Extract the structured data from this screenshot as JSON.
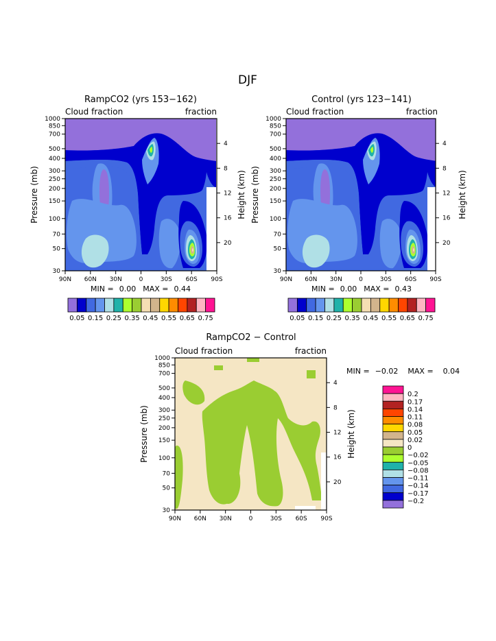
{
  "page_title": "DJF",
  "colors": {
    "cloud": [
      "#9370DB",
      "#0000CD",
      "#4169E1",
      "#6495ED",
      "#B0E0E6",
      "#20B2AA",
      "#ADFF2F",
      "#9ACD32",
      "#F5DEB3",
      "#D2B48C",
      "#FFD700",
      "#FF8C00",
      "#FF4500",
      "#B22222",
      "#FFB6C1",
      "#FF1493"
    ],
    "diff": [
      "#FF1493",
      "#FFB6C1",
      "#B22222",
      "#FF4500",
      "#FF8C00",
      "#FFD700",
      "#D2B48C",
      "#F5E6C4",
      "#9ACD32",
      "#ADFF2F",
      "#20B2AA",
      "#B0E0E6",
      "#6495ED",
      "#4169E1",
      "#0000CD",
      "#9370DB"
    ]
  },
  "chart_data": [
    {
      "id": "rampco2",
      "type": "heatmap",
      "title": "RampCO2 (yrs 153−162)",
      "left_subtitle": "Cloud fraction",
      "right_subtitle": "fraction",
      "ylabel": "Pressure (mb)",
      "ylabel_right": "Height (km)",
      "x_ticks": [
        "90N",
        "60N",
        "30N",
        "0",
        "30S",
        "60S",
        "90S"
      ],
      "y_ticks": [
        "30",
        "50",
        "70",
        "100",
        "150",
        "200",
        "250",
        "300",
        "400",
        "500",
        "700",
        "850",
        "1000"
      ],
      "y_right_ticks": [
        "20",
        "16",
        "12",
        "8",
        "4"
      ],
      "stats": {
        "min_label": "MIN =",
        "min": "0.00",
        "max_label": "MAX =",
        "max": "0.44"
      },
      "colorbar_labels": [
        "0.05",
        "0.15",
        "0.25",
        "0.35",
        "0.45",
        "0.55",
        "0.65",
        "0.75"
      ],
      "xlim": [
        90,
        -90
      ],
      "ylim": [
        1000,
        30
      ],
      "max_value": 0.44
    },
    {
      "id": "control",
      "type": "heatmap",
      "title": "Control (yrs 123−141)",
      "left_subtitle": "Cloud fraction",
      "right_subtitle": "fraction",
      "ylabel": "Pressure (mb)",
      "ylabel_right": "Height (km)",
      "x_ticks": [
        "90N",
        "60N",
        "30N",
        "0",
        "30S",
        "60S",
        "90S"
      ],
      "y_ticks": [
        "30",
        "50",
        "70",
        "100",
        "150",
        "200",
        "250",
        "300",
        "400",
        "500",
        "700",
        "850",
        "1000"
      ],
      "y_right_ticks": [
        "20",
        "16",
        "12",
        "8",
        "4"
      ],
      "stats": {
        "min_label": "MIN =",
        "min": "0.00",
        "max_label": "MAX =",
        "max": "0.43"
      },
      "colorbar_labels": [
        "0.05",
        "0.15",
        "0.25",
        "0.35",
        "0.45",
        "0.55",
        "0.65",
        "0.75"
      ],
      "xlim": [
        90,
        -90
      ],
      "ylim": [
        1000,
        30
      ],
      "max_value": 0.43
    },
    {
      "id": "difference",
      "type": "heatmap",
      "title": "RampCO2 − Control",
      "left_subtitle": "Cloud fraction",
      "right_subtitle": "fraction",
      "ylabel": "Pressure (mb)",
      "ylabel_right": "Height (km)",
      "x_ticks": [
        "90N",
        "60N",
        "30N",
        "0",
        "30S",
        "60S",
        "90S"
      ],
      "y_ticks": [
        "30",
        "50",
        "70",
        "100",
        "150",
        "200",
        "250",
        "300",
        "400",
        "500",
        "700",
        "850",
        "1000"
      ],
      "y_right_ticks": [
        "20",
        "16",
        "12",
        "8",
        "4"
      ],
      "stats": {
        "min_label": "MIN =",
        "min": "−0.02",
        "max_label": "MAX =",
        "max": "0.04"
      },
      "colorbar_labels": [
        "0.2",
        "0.17",
        "0.14",
        "0.11",
        "0.08",
        "0.05",
        "0.02",
        "0",
        "−0.02",
        "−0.05",
        "−0.08",
        "−0.11",
        "−0.14",
        "−0.17",
        "−0.2"
      ],
      "xlim": [
        90,
        -90
      ],
      "ylim": [
        1000,
        30
      ],
      "min_value": -0.02,
      "max_value": 0.04
    }
  ]
}
